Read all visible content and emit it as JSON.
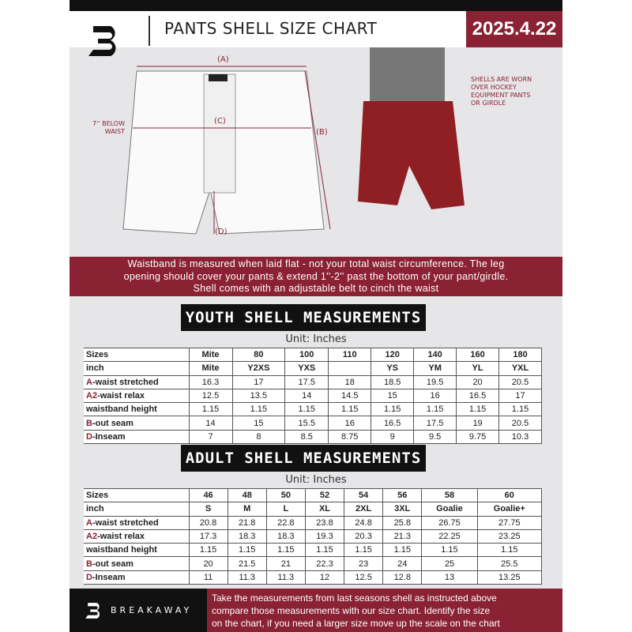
{
  "header": {
    "title": "PANTS SHELL SIZE CHART",
    "date": "2025.4.22",
    "logo_letter": "B"
  },
  "diagram": {
    "label_a": "(A)",
    "label_b": "(B)",
    "label_c": "(C)",
    "label_d": "(D)",
    "below_waist": "7'' BELOW WAIST",
    "shell_note": "SHELLS ARE WORN OVER HOCKEY EQUIPMENT PANTS OR GIRDLE"
  },
  "info_band": [
    "Waistband is measured when laid flat - not your total waist circumference. The leg",
    "opening should cover your pants & extend 1''-2'' past the bottom of your pant/girdle.",
    "Shell comes with an adjustable belt to cinch the waist"
  ],
  "youth": {
    "title": "YOUTH SHELL MEASUREMENTS",
    "unit": "Unit: Inches",
    "rows": [
      {
        "prefix": "",
        "label": "Sizes",
        "values": [
          "Mite",
          "80",
          "100",
          "110",
          "120",
          "140",
          "160",
          "180"
        ]
      },
      {
        "prefix": "",
        "label": "inch",
        "values": [
          "Mite",
          "Y2XS",
          "YXS",
          "",
          "YS",
          "YM",
          "YL",
          "YXL"
        ]
      },
      {
        "prefix": "A",
        "label": "-waist stretched",
        "values": [
          "16.3",
          "17",
          "17.5",
          "18",
          "18.5",
          "19.5",
          "20",
          "20.5"
        ]
      },
      {
        "prefix": "A2",
        "label": "-waist relax",
        "values": [
          "12.5",
          "13.5",
          "14",
          "14.5",
          "15",
          "16",
          "16.5",
          "17"
        ]
      },
      {
        "prefix": "",
        "label": "waistband height",
        "values": [
          "1.15",
          "1.15",
          "1.15",
          "1.15",
          "1.15",
          "1.15",
          "1.15",
          "1.15"
        ]
      },
      {
        "prefix": "B",
        "label": "-out seam",
        "values": [
          "14",
          "15",
          "15.5",
          "16",
          "16.5",
          "17.5",
          "19",
          "20.5"
        ]
      },
      {
        "prefix": "D",
        "label": "-Inseam",
        "values": [
          "7",
          "8",
          "8.5",
          "8.75",
          "9",
          "9.5",
          "9.75",
          "10.3"
        ]
      }
    ]
  },
  "adult": {
    "title": "ADULT SHELL MEASUREMENTS",
    "unit": "Unit: Inches",
    "rows": [
      {
        "prefix": "",
        "label": "Sizes",
        "values": [
          "46",
          "48",
          "50",
          "52",
          "54",
          "56",
          "58",
          "60"
        ]
      },
      {
        "prefix": "",
        "label": "inch",
        "values": [
          "S",
          "M",
          "L",
          "XL",
          "2XL",
          "3XL",
          "Goalie",
          "Goalie+"
        ]
      },
      {
        "prefix": "A",
        "label": "-waist stretched",
        "values": [
          "20.8",
          "21.8",
          "22.8",
          "23.8",
          "24.8",
          "25.8",
          "26.75",
          "27.75"
        ]
      },
      {
        "prefix": "A2",
        "label": "-waist relax",
        "values": [
          "17.3",
          "18.3",
          "18.3",
          "19.3",
          "20.3",
          "21.3",
          "22.25",
          "23.25"
        ]
      },
      {
        "prefix": "",
        "label": "waistband height",
        "values": [
          "1.15",
          "1.15",
          "1.15",
          "1.15",
          "1.15",
          "1.15",
          "1.15",
          "1.15"
        ]
      },
      {
        "prefix": "B",
        "label": "-out seam",
        "values": [
          "20",
          "21.5",
          "21",
          "22.3",
          "23",
          "24",
          "25",
          "25.5"
        ]
      },
      {
        "prefix": "D",
        "label": "-Inseam",
        "values": [
          "11",
          "11.3",
          "11.3",
          "12",
          "12.5",
          "12.8",
          "13",
          "13.25"
        ]
      }
    ]
  },
  "footer": {
    "brand": "BREAKAWAY",
    "text": [
      "Take the measurements from last seasons shell as instructed above",
      "compare those measurements  with our size chart. Identify the size",
      "on the chart, if you need a larger size move up the scale on the chart"
    ]
  },
  "colors": {
    "maroon": "#8a2233",
    "dark": "#111111"
  }
}
